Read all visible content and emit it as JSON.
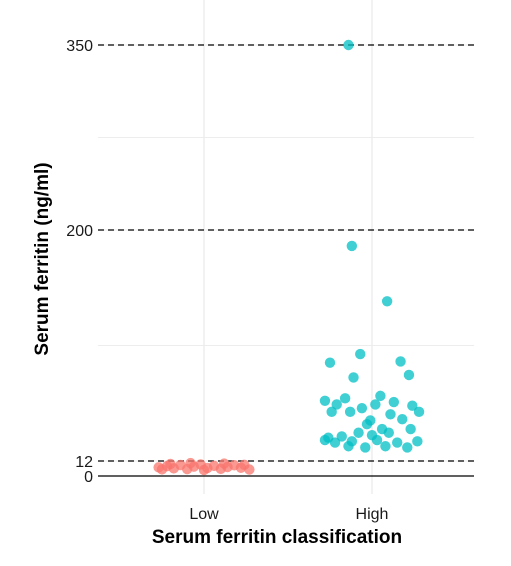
{
  "chart_data": {
    "type": "scatter",
    "title": "",
    "xlabel": "Serum ferritin classification",
    "ylabel": "Serum ferritin (ng/ml)",
    "categories": [
      "Low",
      "High"
    ],
    "ylim": [
      -12,
      375
    ],
    "yticks": [
      0,
      12,
      200,
      350
    ],
    "reference_lines": [
      {
        "y": 12,
        "style": "dashed"
      },
      {
        "y": 200,
        "style": "dashed"
      },
      {
        "y": 350,
        "style": "dashed"
      },
      {
        "y": 0,
        "style": "solid"
      }
    ],
    "grid": true,
    "legend": "none",
    "series": [
      {
        "category": "Low",
        "color": "#F8766D",
        "points": [
          {
            "x": -0.27,
            "y": 6.9
          },
          {
            "x": -0.22,
            "y": 7.9
          },
          {
            "x": -0.18,
            "y": 6.1
          },
          {
            "x": -0.14,
            "y": 8.8
          },
          {
            "x": -0.1,
            "y": 5.5
          },
          {
            "x": -0.06,
            "y": 7.5
          },
          {
            "x": -0.02,
            "y": 9.2
          },
          {
            "x": 0.02,
            "y": 6.4
          },
          {
            "x": 0.06,
            "y": 8.1
          },
          {
            "x": 0.1,
            "y": 5.7
          },
          {
            "x": 0.14,
            "y": 7.2
          },
          {
            "x": 0.18,
            "y": 8.6
          },
          {
            "x": 0.22,
            "y": 6.6
          },
          {
            "x": 0.27,
            "y": 5.2
          },
          {
            "x": -0.2,
            "y": 9.6
          },
          {
            "x": 0.0,
            "y": 4.8
          },
          {
            "x": 0.12,
            "y": 9.9
          },
          {
            "x": -0.08,
            "y": 10.3
          },
          {
            "x": 0.24,
            "y": 8.9
          },
          {
            "x": -0.25,
            "y": 5.3
          }
        ]
      },
      {
        "category": "High",
        "color": "#00BFC4",
        "points": [
          {
            "x": -0.14,
            "y": 350
          },
          {
            "x": -0.12,
            "y": 187
          },
          {
            "x": 0.09,
            "y": 142
          },
          {
            "x": -0.07,
            "y": 99
          },
          {
            "x": -0.25,
            "y": 92
          },
          {
            "x": 0.17,
            "y": 93
          },
          {
            "x": -0.11,
            "y": 80
          },
          {
            "x": 0.22,
            "y": 82
          },
          {
            "x": -0.16,
            "y": 63
          },
          {
            "x": 0.05,
            "y": 65
          },
          {
            "x": -0.06,
            "y": 55
          },
          {
            "x": 0.13,
            "y": 60
          },
          {
            "x": -0.28,
            "y": 61
          },
          {
            "x": 0.24,
            "y": 57
          },
          {
            "x": -0.21,
            "y": 58
          },
          {
            "x": 0.02,
            "y": 58
          },
          {
            "x": -0.01,
            "y": 45
          },
          {
            "x": 0.11,
            "y": 50
          },
          {
            "x": 0.28,
            "y": 52
          },
          {
            "x": -0.24,
            "y": 52
          },
          {
            "x": -0.13,
            "y": 52
          },
          {
            "x": 0.18,
            "y": 46
          },
          {
            "x": -0.03,
            "y": 42
          },
          {
            "x": 0.06,
            "y": 38
          },
          {
            "x": -0.26,
            "y": 31
          },
          {
            "x": -0.18,
            "y": 32
          },
          {
            "x": -0.08,
            "y": 35
          },
          {
            "x": 0.1,
            "y": 35
          },
          {
            "x": 0.23,
            "y": 38
          },
          {
            "x": -0.12,
            "y": 28
          },
          {
            "x": 0.03,
            "y": 29
          },
          {
            "x": 0.15,
            "y": 27
          },
          {
            "x": -0.22,
            "y": 27
          },
          {
            "x": 0.27,
            "y": 28
          },
          {
            "x": -0.04,
            "y": 23
          },
          {
            "x": 0.21,
            "y": 23
          },
          {
            "x": -0.14,
            "y": 24
          },
          {
            "x": 0.08,
            "y": 24
          },
          {
            "x": -0.28,
            "y": 29
          },
          {
            "x": 0.0,
            "y": 33
          }
        ]
      }
    ]
  }
}
